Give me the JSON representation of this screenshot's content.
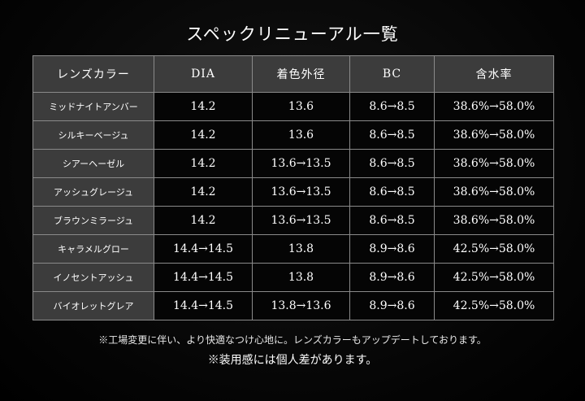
{
  "title": "スペックリニューアル一覧",
  "table": {
    "headers": [
      "レンズカラー",
      "DIA",
      "着色外径",
      "BC",
      "含水率"
    ],
    "rows": [
      [
        "ミッドナイトアンバー",
        "14.2",
        "13.6",
        "8.6→8.5",
        "38.6%→58.0%"
      ],
      [
        "シルキーベージュ",
        "14.2",
        "13.6",
        "8.6→8.5",
        "38.6%→58.0%"
      ],
      [
        "シアーヘーゼル",
        "14.2",
        "13.6→13.5",
        "8.6→8.5",
        "38.6%→58.0%"
      ],
      [
        "アッシュグレージュ",
        "14.2",
        "13.6→13.5",
        "8.6→8.5",
        "38.6%→58.0%"
      ],
      [
        "ブラウンミラージュ",
        "14.2",
        "13.6→13.5",
        "8.6→8.5",
        "38.6%→58.0%"
      ],
      [
        "キャラメルグロー",
        "14.4→14.5",
        "13.8",
        "8.9→8.6",
        "42.5%→58.0%"
      ],
      [
        "イノセントアッシュ",
        "14.4→14.5",
        "13.8",
        "8.9→8.6",
        "42.5%→58.0%"
      ],
      [
        "バイオレットグレア",
        "14.4→14.5",
        "13.8→13.6",
        "8.9→8.6",
        "42.5%→58.0%"
      ]
    ]
  },
  "notes": {
    "line1": "※工場変更に伴い、より快適なつけ心地に。レンズカラーもアップデートしております。",
    "line2": "※装用感には個人差があります。"
  }
}
